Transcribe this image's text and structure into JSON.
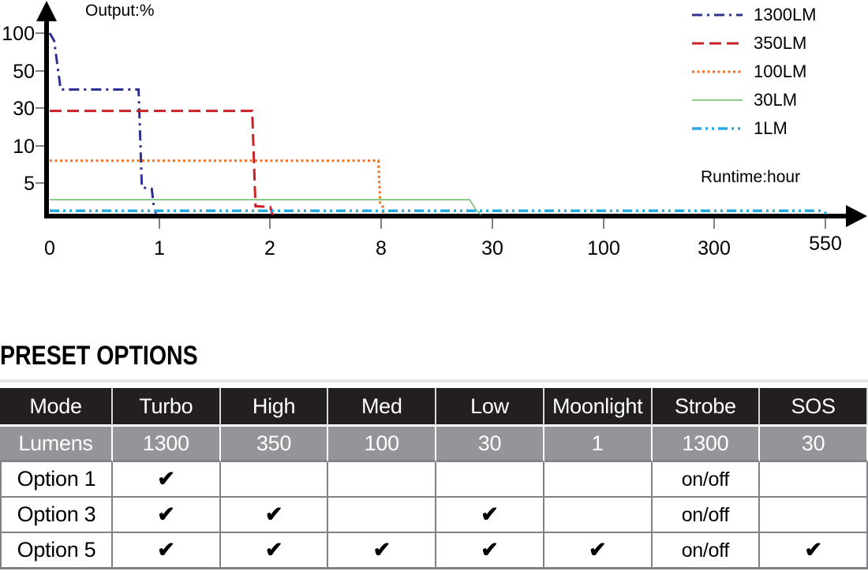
{
  "chart_data": {
    "type": "line",
    "title": "Output:%",
    "xlabel": "Runtime:hour",
    "ylabel": "Output:%",
    "x_tick_values": [
      0,
      1,
      2,
      8,
      30,
      100,
      300,
      550
    ],
    "y_tick_values": [
      100,
      50,
      30,
      10,
      5
    ],
    "x_scale": "piecewise-linear-between-ticks",
    "grid": false,
    "legend_position": "top-right",
    "series": [
      {
        "name": "1300LM",
        "color": "#2e3192",
        "style": "dash-dot",
        "width": 3,
        "points": [
          [
            0,
            100
          ],
          [
            0.04,
            90
          ],
          [
            0.1,
            40
          ],
          [
            0.81,
            40
          ],
          [
            0.84,
            4.3
          ],
          [
            0.93,
            4.1
          ],
          [
            0.95,
            1.3
          ],
          [
            0.97,
            0.3
          ]
        ]
      },
      {
        "name": "350LM",
        "color": "#cb2026",
        "style": "long-dash",
        "width": 3,
        "points": [
          [
            0,
            28.5
          ],
          [
            1.84,
            28.5
          ],
          [
            1.87,
            1.4
          ],
          [
            2.02,
            1.3
          ],
          [
            2.15,
            0.05
          ]
        ]
      },
      {
        "name": "100LM",
        "color": "#f26f21",
        "style": "dot",
        "width": 3,
        "points": [
          [
            0,
            8
          ],
          [
            7.85,
            8
          ],
          [
            7.95,
            1.9
          ],
          [
            8.3,
            1.5
          ],
          [
            8.4,
            0.2
          ]
        ]
      },
      {
        "name": "30LM",
        "color": "#63b965",
        "style": "solid",
        "width": 1.5,
        "points": [
          [
            0,
            2.4
          ],
          [
            25.5,
            2.4
          ],
          [
            26.8,
            0.8
          ],
          [
            27.4,
            0.4
          ],
          [
            27.7,
            0.05
          ]
        ]
      },
      {
        "name": "1LM",
        "color": "#29abe2",
        "style": "dash-dot-dot",
        "width": 3.5,
        "points": [
          [
            0,
            0.7
          ],
          [
            538,
            0.7
          ],
          [
            548,
            0.45
          ],
          [
            556,
            0.1
          ]
        ]
      }
    ]
  },
  "preset": {
    "heading": "PRESET OPTIONS",
    "columns": [
      "Mode",
      "Turbo",
      "High",
      "Med",
      "Low",
      "Moonlight",
      "Strobe",
      "SOS"
    ],
    "lumens_row": {
      "label": "Lumens",
      "values": [
        "1300",
        "350",
        "100",
        "30",
        "1",
        "1300",
        "30"
      ]
    },
    "option_rows": [
      {
        "label": "Option 1",
        "cells": [
          "check",
          "",
          "",
          "",
          "",
          "on/off",
          ""
        ]
      },
      {
        "label": "Option 3",
        "cells": [
          "check",
          "check",
          "",
          "check",
          "",
          "on/off",
          ""
        ]
      },
      {
        "label": "Option 5",
        "cells": [
          "check",
          "check",
          "check",
          "check",
          "check",
          "on/off",
          "check"
        ]
      }
    ],
    "check_glyph": "✔"
  },
  "colors": {
    "axis": "#000000",
    "tick": "#808285",
    "table_header_bg": "#231f20",
    "table_lumens_bg": "#939598",
    "table_border": "#808285",
    "heading_rule": "#e6e7e8"
  }
}
